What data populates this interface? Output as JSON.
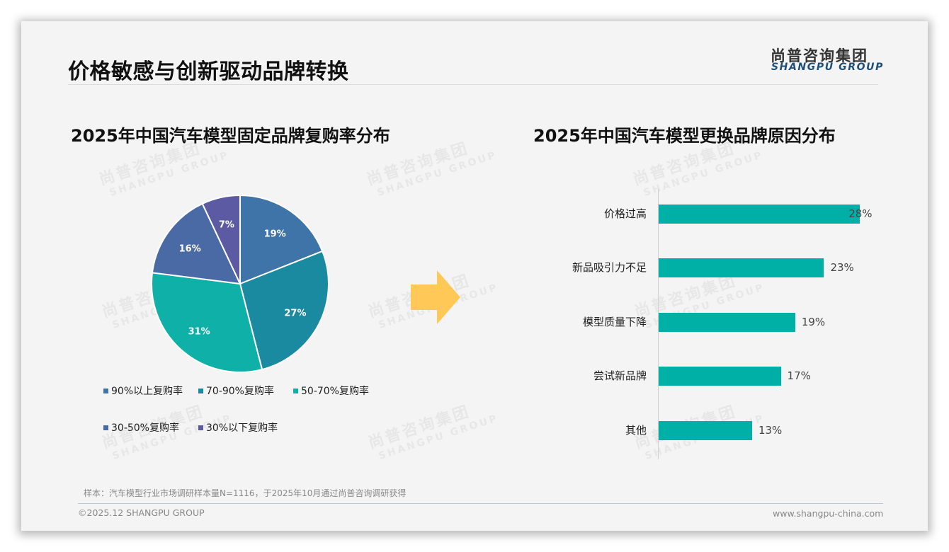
{
  "slide": {
    "title": "价格敏感与创新驱动品牌转换",
    "logo": {
      "cn": "尚普咨询集团",
      "en": "SHANGPU GROUP"
    },
    "watermark": {
      "cn": "尚普咨询集团",
      "en": "SHANGPU GROUP"
    },
    "note": "样本：汽车模型行业市场调研样本量N=1116，于2025年10月通过尚普咨询调研获得",
    "footer": {
      "copyright": "©2025.12 SHANGPU GROUP",
      "website": "www.shangpu-china.com"
    },
    "arrow": {
      "icon": "right-arrow-icon",
      "color": "#ffc857"
    }
  },
  "chart_data": [
    {
      "type": "pie",
      "title": "2025年中国汽车模型固定品牌复购率分布",
      "categories": [
        "90%以上复购率",
        "70-90%复购率",
        "50-70%复购率",
        "30-50%复购率",
        "30%以下复购率"
      ],
      "values": [
        19,
        27,
        31,
        16,
        7
      ],
      "labels": [
        "19%",
        "27%",
        "31%",
        "16%",
        "7%"
      ],
      "colors": [
        "#3f74a8",
        "#1a8aa0",
        "#0fb0a8",
        "#4a6aa6",
        "#5b5aa3"
      ],
      "start_angle": "12 o'clock, clockwise",
      "legend_position": "bottom"
    },
    {
      "type": "bar",
      "orientation": "horizontal",
      "title": "2025年中国汽车模型更换品牌原因分布",
      "categories": [
        "价格过高",
        "新品吸引力不足",
        "模型质量下降",
        "尝试新品牌",
        "其他"
      ],
      "values": [
        28,
        23,
        19,
        17,
        13
      ],
      "labels": [
        "28%",
        "23%",
        "19%",
        "17%",
        "13%"
      ],
      "color": "#00b0a6",
      "grid": false,
      "xlabel": "",
      "ylabel": ""
    }
  ]
}
